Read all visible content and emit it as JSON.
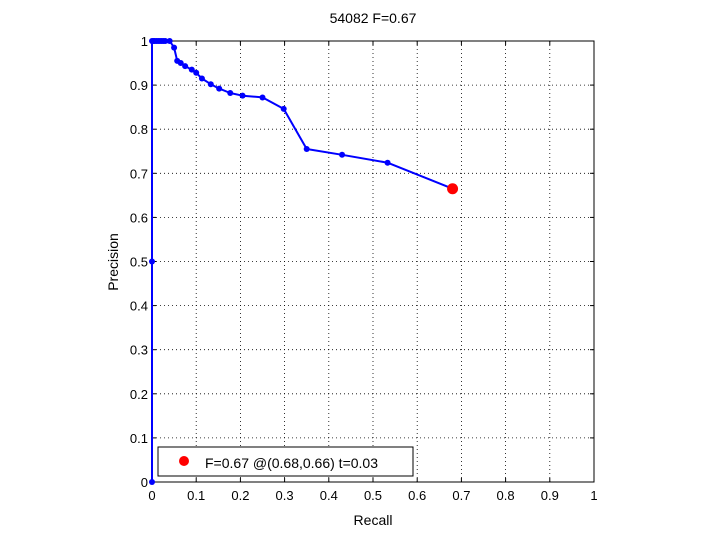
{
  "chart_data": {
    "type": "line",
    "title": "54082 F=0.67",
    "xlabel": "Recall",
    "ylabel": "Precision",
    "xlim": [
      0,
      1
    ],
    "ylim": [
      0,
      1
    ],
    "grid": true,
    "xticks": [
      "0",
      "0.1",
      "0.2",
      "0.3",
      "0.4",
      "0.5",
      "0.6",
      "0.7",
      "0.8",
      "0.9",
      "1"
    ],
    "yticks": [
      "0",
      "0.1",
      "0.2",
      "0.3",
      "0.4",
      "0.5",
      "0.6",
      "0.7",
      "0.8",
      "0.9",
      "1"
    ],
    "series": [
      {
        "color": "#0000ff",
        "x": [
          0.0,
          0.0,
          0.0,
          0.003,
          0.006,
          0.01,
          0.014,
          0.018,
          0.022,
          0.026,
          0.03,
          0.04,
          0.05,
          0.057,
          0.065,
          0.075,
          0.09,
          0.1,
          0.113,
          0.133,
          0.152,
          0.177,
          0.205,
          0.25,
          0.298,
          0.35,
          0.43,
          0.533,
          0.68
        ],
        "y": [
          0.0,
          0.5,
          1.0,
          1.0,
          1.0,
          1.0,
          1.0,
          1.0,
          1.0,
          1.0,
          1.0,
          1.0,
          0.985,
          0.955,
          0.95,
          0.943,
          0.935,
          0.928,
          0.915,
          0.902,
          0.892,
          0.882,
          0.876,
          0.872,
          0.846,
          0.755,
          0.742,
          0.724,
          0.665
        ]
      }
    ],
    "highlight": {
      "x": 0.68,
      "y": 0.665,
      "color": "#ff0000"
    },
    "legend": {
      "location": "bottom-left",
      "label": "F=0.67 @(0.68,0.66) t=0.03"
    }
  }
}
